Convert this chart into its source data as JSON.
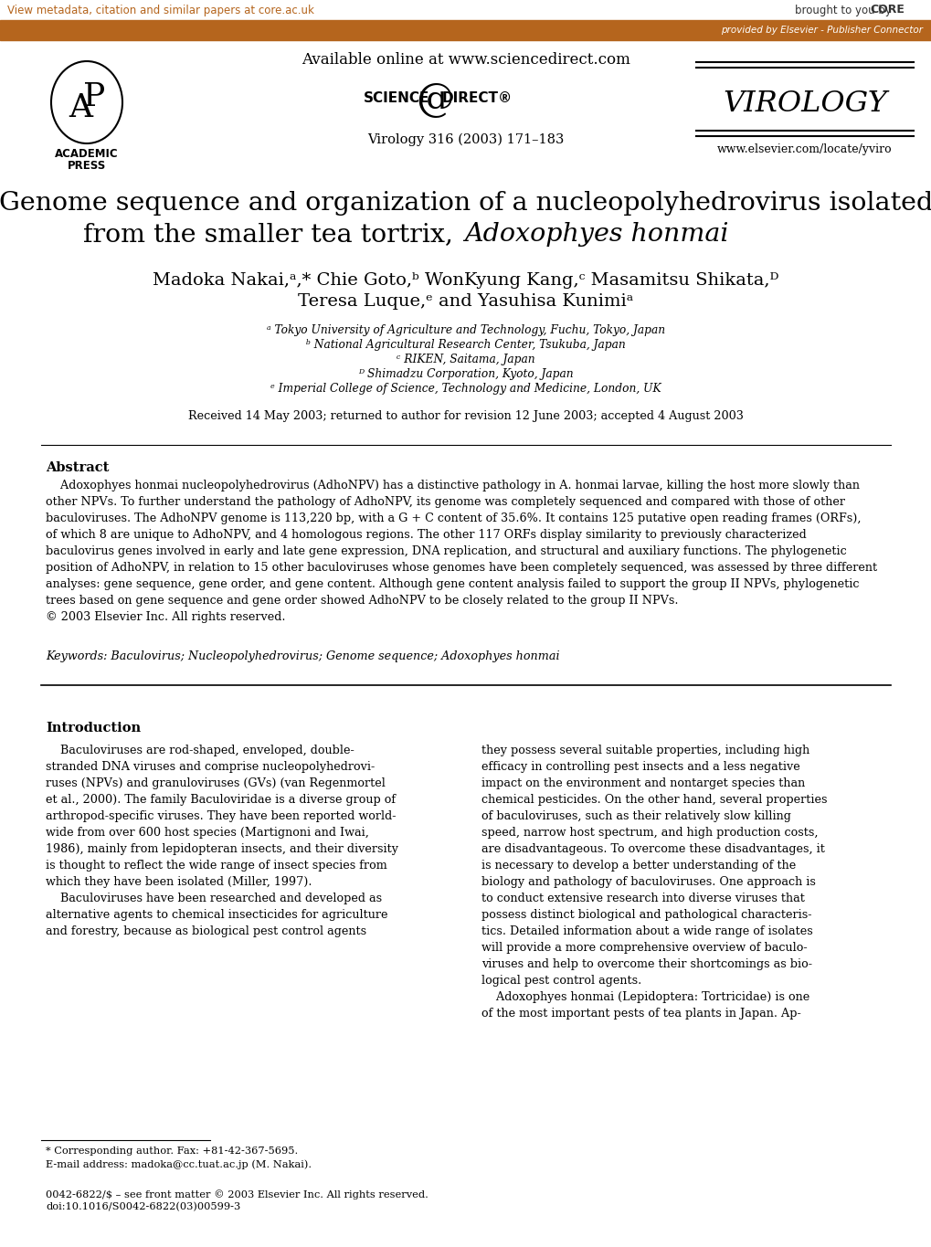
{
  "bg_color": "#ffffff",
  "header_bar_color": "#b5651d",
  "header_bar_text": "provided by Elsevier - Publisher Connector",
  "top_link_text": "View metadata, citation and similar papers at core.ac.uk",
  "top_link_color": "#b5651d",
  "available_online_text": "Available online at www.sciencedirect.com",
  "journal_label_text": "Virology 316 (2003) 171–183",
  "journal_name": "VIROLOGY",
  "journal_url": "www.elsevier.com/locate/yviro",
  "title_line1": "Genome sequence and organization of a nucleopolyhedrovirus isolated",
  "title_line2_normal": "from the smaller tea tortrix, ",
  "title_line2_italic": "Adoxophyes honmai",
  "author_line1": "Madoka Nakai,ᵃ,* Chie Goto,ᵇ WonKyung Kang,ᶜ Masamitsu Shikata,ᴰ",
  "author_line2": "Teresa Luque,ᵉ and Yasuhisa Kunimiᵃ",
  "affil_a": "ᵃ Tokyo University of Agriculture and Technology, Fuchu, Tokyo, Japan",
  "affil_b": "ᵇ National Agricultural Research Center, Tsukuba, Japan",
  "affil_c": "ᶜ RIKEN, Saitama, Japan",
  "affil_d": "ᴰ Shimadzu Corporation, Kyoto, Japan",
  "affil_e": "ᵉ Imperial College of Science, Technology and Medicine, London, UK",
  "received_text": "Received 14 May 2003; returned to author for revision 12 June 2003; accepted 4 August 2003",
  "abstract_title": "Abstract",
  "abstract_body": "    Adoxophyes honmai nucleopolyhedrovirus (AdhoNPV) has a distinctive pathology in A. honmai larvae, killing the host more slowly than\nother NPVs. To further understand the pathology of AdhoNPV, its genome was completely sequenced and compared with those of other\nbaculoviruses. The AdhoNPV genome is 113,220 bp, with a G + C content of 35.6%. It contains 125 putative open reading frames (ORFs),\nof which 8 are unique to AdhoNPV, and 4 homologous regions. The other 117 ORFs display similarity to previously characterized\nbaculovirus genes involved in early and late gene expression, DNA replication, and structural and auxiliary functions. The phylogenetic\nposition of AdhoNPV, in relation to 15 other baculoviruses whose genomes have been completely sequenced, was assessed by three different\nanalyses: gene sequence, gene order, and gene content. Although gene content analysis failed to support the group II NPVs, phylogenetic\ntrees based on gene sequence and gene order showed AdhoNPV to be closely related to the group II NPVs.\n© 2003 Elsevier Inc. All rights reserved.",
  "keywords_text": "Keywords: Baculovirus; Nucleopolyhedrovirus; Genome sequence; Adoxophyes honmai",
  "intro_title": "Introduction",
  "col1_text": "    Baculoviruses are rod-shaped, enveloped, double-\nstranded DNA viruses and comprise nucleopolyhedrovi-\nruses (NPVs) and granuloviruses (GVs) (van Regenmortel\net al., 2000). The family Baculoviridae is a diverse group of\narthropod-specific viruses. They have been reported world-\nwide from over 600 host species (Martignoni and Iwai,\n1986), mainly from lepidopteran insects, and their diversity\nis thought to reflect the wide range of insect species from\nwhich they have been isolated (Miller, 1997).\n    Baculoviruses have been researched and developed as\nalternative agents to chemical insecticides for agriculture\nand forestry, because as biological pest control agents",
  "col2_text": "they possess several suitable properties, including high\nefficacy in controlling pest insects and a less negative\nimpact on the environment and nontarget species than\nchemical pesticides. On the other hand, several properties\nof baculoviruses, such as their relatively slow killing\nspeed, narrow host spectrum, and high production costs,\nare disadvantageous. To overcome these disadvantages, it\nis necessary to develop a better understanding of the\nbiology and pathology of baculoviruses. One approach is\nto conduct extensive research into diverse viruses that\npossess distinct biological and pathological characteris-\ntics. Detailed information about a wide range of isolates\nwill provide a more comprehensive overview of baculo-\nviruses and help to overcome their shortcomings as bio-\nlogical pest control agents.\n    Adoxophyes honmai (Lepidoptera: Tortricidae) is one\nof the most important pests of tea plants in Japan. Ap-",
  "footnote_line1": "* Corresponding author. Fax: +81-42-367-5695.",
  "footnote_line2": "E-mail address: madoka@cc.tuat.ac.jp (M. Nakai).",
  "footnote_bottom1": "0042-6822/$ – see front matter © 2003 Elsevier Inc. All rights reserved.",
  "footnote_bottom2": "doi:10.1016/S0042-6822(03)00599-3"
}
